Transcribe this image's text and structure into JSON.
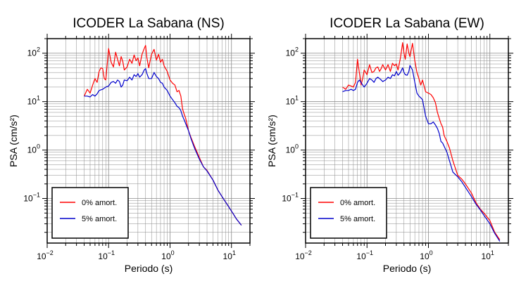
{
  "chart_data": [
    {
      "type": "line",
      "title": "ICODER La Sabana (NS)",
      "xlabel": "Periodo (s)",
      "ylabel": "PSA (cm/s²)",
      "xscale": "log",
      "yscale": "log",
      "xlim": [
        0.01,
        20
      ],
      "ylim": [
        0.012,
        200
      ],
      "grid": true,
      "legend_position": "bottom-left",
      "x_ticks": [
        {
          "value": 0.01,
          "base": "10",
          "exp": "−2"
        },
        {
          "value": 0.1,
          "base": "10",
          "exp": "−1"
        },
        {
          "value": 1,
          "base": "10",
          "exp": "0"
        },
        {
          "value": 10,
          "base": "10",
          "exp": "1"
        }
      ],
      "y_ticks": [
        {
          "value": 0.1,
          "base": "10",
          "exp": "−1"
        },
        {
          "value": 1,
          "base": "10",
          "exp": "0"
        },
        {
          "value": 10,
          "base": "10",
          "exp": "1"
        },
        {
          "value": 100,
          "base": "10",
          "exp": "2"
        }
      ],
      "series": [
        {
          "name": "0% amort.",
          "color": "#ff0000",
          "points": [
            [
              0.04,
              13
            ],
            [
              0.045,
              18
            ],
            [
              0.05,
              15
            ],
            [
              0.055,
              22
            ],
            [
              0.06,
              30
            ],
            [
              0.065,
              25
            ],
            [
              0.07,
              42
            ],
            [
              0.075,
              50
            ],
            [
              0.08,
              48
            ],
            [
              0.085,
              30
            ],
            [
              0.09,
              28
            ],
            [
              0.095,
              60
            ],
            [
              0.1,
              125
            ],
            [
              0.11,
              65
            ],
            [
              0.12,
              52
            ],
            [
              0.13,
              105
            ],
            [
              0.14,
              75
            ],
            [
              0.15,
              55
            ],
            [
              0.16,
              85
            ],
            [
              0.17,
              68
            ],
            [
              0.18,
              45
            ],
            [
              0.2,
              52
            ],
            [
              0.22,
              75
            ],
            [
              0.24,
              62
            ],
            [
              0.26,
              92
            ],
            [
              0.28,
              70
            ],
            [
              0.3,
              80
            ],
            [
              0.32,
              55
            ],
            [
              0.35,
              95
            ],
            [
              0.38,
              125
            ],
            [
              0.4,
              145
            ],
            [
              0.42,
              80
            ],
            [
              0.45,
              50
            ],
            [
              0.48,
              75
            ],
            [
              0.5,
              95
            ],
            [
              0.55,
              120
            ],
            [
              0.6,
              72
            ],
            [
              0.65,
              95
            ],
            [
              0.7,
              65
            ],
            [
              0.75,
              75
            ],
            [
              0.8,
              55
            ],
            [
              0.9,
              42
            ],
            [
              1.0,
              28
            ],
            [
              1.1,
              24
            ],
            [
              1.2,
              22
            ],
            [
              1.3,
              16
            ],
            [
              1.4,
              17
            ],
            [
              1.5,
              13
            ],
            [
              1.6,
              7
            ],
            [
              1.7,
              5.5
            ],
            [
              1.8,
              4.5
            ],
            [
              2.0,
              2.5
            ],
            [
              2.2,
              1.8
            ],
            [
              2.5,
              1.2
            ],
            [
              3.0,
              0.7
            ],
            [
              3.5,
              0.45
            ],
            [
              4.0,
              0.38
            ],
            [
              5.0,
              0.24
            ],
            [
              6.0,
              0.15
            ],
            [
              7.0,
              0.11
            ],
            [
              8.0,
              0.085
            ],
            [
              10.0,
              0.055
            ],
            [
              12.0,
              0.038
            ],
            [
              14.5,
              0.028
            ]
          ]
        },
        {
          "name": "5% amort.",
          "color": "#0000cc",
          "points": [
            [
              0.04,
              13
            ],
            [
              0.045,
              13
            ],
            [
              0.05,
              12.5
            ],
            [
              0.055,
              14
            ],
            [
              0.06,
              13
            ],
            [
              0.065,
              14.5
            ],
            [
              0.07,
              17
            ],
            [
              0.08,
              18
            ],
            [
              0.09,
              20
            ],
            [
              0.1,
              21
            ],
            [
              0.11,
              25
            ],
            [
              0.12,
              26
            ],
            [
              0.13,
              24
            ],
            [
              0.14,
              28
            ],
            [
              0.15,
              26
            ],
            [
              0.16,
              20
            ],
            [
              0.17,
              22
            ],
            [
              0.18,
              28
            ],
            [
              0.2,
              27
            ],
            [
              0.22,
              32
            ],
            [
              0.24,
              28
            ],
            [
              0.26,
              36
            ],
            [
              0.28,
              33
            ],
            [
              0.3,
              38
            ],
            [
              0.32,
              32
            ],
            [
              0.35,
              36
            ],
            [
              0.38,
              45
            ],
            [
              0.4,
              48
            ],
            [
              0.42,
              38
            ],
            [
              0.45,
              30
            ],
            [
              0.5,
              30
            ],
            [
              0.55,
              40
            ],
            [
              0.6,
              33
            ],
            [
              0.65,
              30
            ],
            [
              0.7,
              25
            ],
            [
              0.75,
              24
            ],
            [
              0.8,
              20
            ],
            [
              0.9,
              17
            ],
            [
              1.0,
              13
            ],
            [
              1.1,
              11
            ],
            [
              1.2,
              9.5
            ],
            [
              1.3,
              8
            ],
            [
              1.4,
              7.5
            ],
            [
              1.5,
              6.5
            ],
            [
              1.6,
              5
            ],
            [
              1.7,
              4.2
            ],
            [
              1.8,
              3.5
            ],
            [
              2.0,
              2.5
            ],
            [
              2.2,
              1.7
            ],
            [
              2.5,
              1.1
            ],
            [
              3.0,
              0.65
            ],
            [
              3.5,
              0.45
            ],
            [
              4.0,
              0.37
            ],
            [
              5.0,
              0.24
            ],
            [
              6.0,
              0.15
            ],
            [
              7.0,
              0.11
            ],
            [
              8.0,
              0.085
            ],
            [
              10.0,
              0.055
            ],
            [
              12.0,
              0.038
            ],
            [
              14.5,
              0.028
            ]
          ]
        }
      ]
    },
    {
      "type": "line",
      "title": "ICODER La Sabana (EW)",
      "xlabel": "Periodo (s)",
      "ylabel": "PSA (cm/s²)",
      "xscale": "log",
      "yscale": "log",
      "xlim": [
        0.01,
        20
      ],
      "ylim": [
        0.012,
        200
      ],
      "grid": true,
      "legend_position": "bottom-left",
      "x_ticks": [
        {
          "value": 0.01,
          "base": "10",
          "exp": "−2"
        },
        {
          "value": 0.1,
          "base": "10",
          "exp": "−1"
        },
        {
          "value": 1,
          "base": "10",
          "exp": "0"
        },
        {
          "value": 10,
          "base": "10",
          "exp": "1"
        }
      ],
      "y_ticks": [
        {
          "value": 0.1,
          "base": "10",
          "exp": "−1"
        },
        {
          "value": 1,
          "base": "10",
          "exp": "0"
        },
        {
          "value": 10,
          "base": "10",
          "exp": "1"
        },
        {
          "value": 100,
          "base": "10",
          "exp": "2"
        }
      ],
      "series": [
        {
          "name": "0% amort.",
          "color": "#ff0000",
          "points": [
            [
              0.04,
              20
            ],
            [
              0.045,
              18
            ],
            [
              0.05,
              22
            ],
            [
              0.055,
              21
            ],
            [
              0.06,
              20
            ],
            [
              0.065,
              25
            ],
            [
              0.07,
              75
            ],
            [
              0.075,
              40
            ],
            [
              0.08,
              22
            ],
            [
              0.085,
              30
            ],
            [
              0.09,
              45
            ],
            [
              0.1,
              36
            ],
            [
              0.11,
              58
            ],
            [
              0.12,
              40
            ],
            [
              0.13,
              42
            ],
            [
              0.14,
              50
            ],
            [
              0.15,
              52
            ],
            [
              0.16,
              42
            ],
            [
              0.17,
              48
            ],
            [
              0.18,
              58
            ],
            [
              0.2,
              45
            ],
            [
              0.22,
              58
            ],
            [
              0.24,
              42
            ],
            [
              0.26,
              62
            ],
            [
              0.28,
              55
            ],
            [
              0.3,
              60
            ],
            [
              0.32,
              45
            ],
            [
              0.35,
              80
            ],
            [
              0.38,
              165
            ],
            [
              0.4,
              100
            ],
            [
              0.42,
              75
            ],
            [
              0.45,
              155
            ],
            [
              0.48,
              100
            ],
            [
              0.5,
              85
            ],
            [
              0.55,
              160
            ],
            [
              0.6,
              70
            ],
            [
              0.65,
              40
            ],
            [
              0.7,
              30
            ],
            [
              0.75,
              22
            ],
            [
              0.8,
              28
            ],
            [
              0.9,
              16
            ],
            [
              1.0,
              15
            ],
            [
              1.1,
              14
            ],
            [
              1.2,
              12
            ],
            [
              1.3,
              9.5
            ],
            [
              1.4,
              6
            ],
            [
              1.5,
              4.5
            ],
            [
              1.6,
              3.5
            ],
            [
              1.7,
              3
            ],
            [
              1.8,
              2
            ],
            [
              2.0,
              1.5
            ],
            [
              2.2,
              1.1
            ],
            [
              2.5,
              0.6
            ],
            [
              3.0,
              0.3
            ],
            [
              3.5,
              0.25
            ],
            [
              4.0,
              0.2
            ],
            [
              5.0,
              0.13
            ],
            [
              6.0,
              0.08
            ],
            [
              7.0,
              0.06
            ],
            [
              8.0,
              0.05
            ],
            [
              10.0,
              0.035
            ],
            [
              12.0,
              0.02
            ],
            [
              14.5,
              0.014
            ]
          ]
        },
        {
          "name": "5% amort.",
          "color": "#0000cc",
          "points": [
            [
              0.04,
              16
            ],
            [
              0.045,
              17
            ],
            [
              0.05,
              17
            ],
            [
              0.055,
              18
            ],
            [
              0.06,
              17
            ],
            [
              0.065,
              18
            ],
            [
              0.07,
              25
            ],
            [
              0.075,
              28
            ],
            [
              0.08,
              25
            ],
            [
              0.085,
              22
            ],
            [
              0.09,
              20
            ],
            [
              0.1,
              24
            ],
            [
              0.11,
              30
            ],
            [
              0.12,
              28
            ],
            [
              0.13,
              25
            ],
            [
              0.14,
              30
            ],
            [
              0.15,
              32
            ],
            [
              0.16,
              30
            ],
            [
              0.17,
              28
            ],
            [
              0.18,
              26
            ],
            [
              0.2,
              28
            ],
            [
              0.22,
              32
            ],
            [
              0.24,
              30
            ],
            [
              0.26,
              36
            ],
            [
              0.28,
              34
            ],
            [
              0.3,
              42
            ],
            [
              0.32,
              35
            ],
            [
              0.35,
              40
            ],
            [
              0.38,
              50
            ],
            [
              0.4,
              40
            ],
            [
              0.42,
              36
            ],
            [
              0.45,
              35
            ],
            [
              0.48,
              42
            ],
            [
              0.5,
              56
            ],
            [
              0.55,
              45
            ],
            [
              0.6,
              25
            ],
            [
              0.65,
              15
            ],
            [
              0.7,
              13
            ],
            [
              0.75,
              12
            ],
            [
              0.8,
              11
            ],
            [
              0.9,
              5
            ],
            [
              1.0,
              3.5
            ],
            [
              1.1,
              3.5
            ],
            [
              1.2,
              3.8
            ],
            [
              1.3,
              3.3
            ],
            [
              1.4,
              2.8
            ],
            [
              1.5,
              2.2
            ],
            [
              1.6,
              1.5
            ],
            [
              1.7,
              1.4
            ],
            [
              1.8,
              1.2
            ],
            [
              2.0,
              0.9
            ],
            [
              2.2,
              0.6
            ],
            [
              2.5,
              0.35
            ],
            [
              3.0,
              0.28
            ],
            [
              3.5,
              0.22
            ],
            [
              4.0,
              0.17
            ],
            [
              5.0,
              0.11
            ],
            [
              6.0,
              0.075
            ],
            [
              7.0,
              0.058
            ],
            [
              8.0,
              0.045
            ],
            [
              10.0,
              0.03
            ],
            [
              12.0,
              0.019
            ],
            [
              14.5,
              0.013
            ]
          ]
        }
      ]
    }
  ]
}
